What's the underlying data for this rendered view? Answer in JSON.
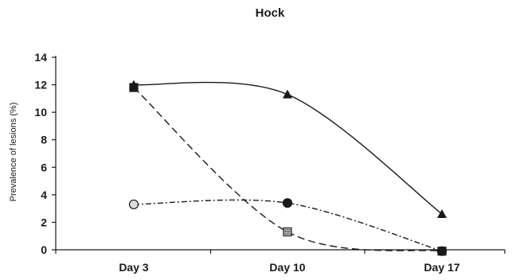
{
  "chart_data": {
    "type": "line",
    "title": "Hock",
    "xlabel": "",
    "ylabel": "Prevalence of lesions (%)",
    "categories": [
      "Day 3",
      "Day 10",
      "Day 17"
    ],
    "ylim": [
      0,
      14
    ],
    "yticks": [
      "0",
      "2",
      "4",
      "6",
      "8",
      "10",
      "12",
      "14"
    ],
    "grid": false,
    "legend": "none",
    "series": [
      {
        "marker": "triangle",
        "line_style": "solid",
        "color": "#1a1a1a",
        "values": [
          12.0,
          11.3,
          2.6
        ]
      },
      {
        "marker": "square",
        "line_style": "dashed",
        "color": "#1a1a1a",
        "values": [
          11.8,
          1.3,
          -0.1
        ]
      },
      {
        "marker": "circle",
        "line_style": "dash-dot",
        "color": "#1a1a1a",
        "values": [
          3.3,
          3.4,
          -0.1
        ]
      }
    ]
  }
}
